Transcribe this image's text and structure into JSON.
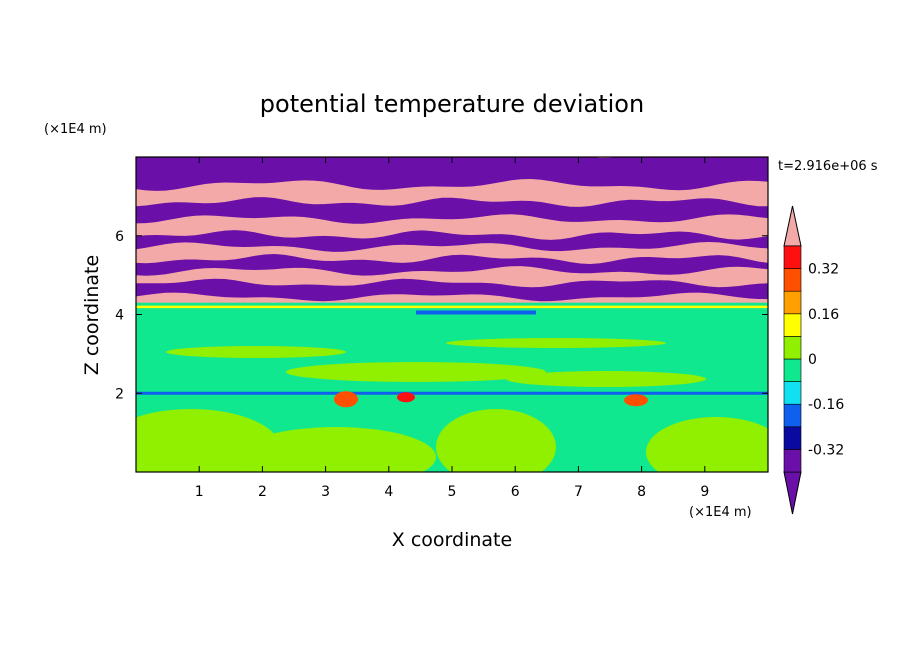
{
  "chart_data": {
    "type": "heatmap",
    "title": "potential temperature deviation",
    "xlabel": "X coordinate",
    "ylabel": "Z coordinate",
    "x_unit": "(×1E4 m)",
    "y_unit": "(×1E4 m)",
    "time_label": "t=2.916e+06 s",
    "xlim": [
      0,
      10
    ],
    "ylim": [
      0,
      8
    ],
    "x_ticks": [
      "1",
      "2",
      "3",
      "4",
      "5",
      "6",
      "7",
      "8",
      "9"
    ],
    "y_ticks": [
      "2",
      "4",
      "6"
    ],
    "colorbar": {
      "levels": [
        -0.4,
        -0.32,
        -0.24,
        -0.16,
        -0.08,
        0,
        0.08,
        0.16,
        0.24,
        0.32,
        0.4
      ],
      "labels": [
        "0.32",
        "0.16",
        "0",
        "-0.16",
        "-0.32"
      ],
      "label_values": [
        0.32,
        0.16,
        0,
        -0.16,
        -0.32
      ],
      "colors_low_to_high": [
        "#6a0fa8",
        "#0a0aa0",
        "#1060f0",
        "#10e0f0",
        "#10e890",
        "#90f000",
        "#ffff00",
        "#ffa000",
        "#ff5000",
        "#ff1010",
        "#f4a9a9"
      ],
      "extend": "both"
    },
    "layers": [
      {
        "z_range": [
          4.3,
          8
        ],
        "description_values": "alternating bands of -0.4 and above 0.4"
      },
      {
        "z_range": [
          0,
          4.3
        ],
        "description_values": "mostly between -0.08 and 0.08"
      }
    ]
  }
}
